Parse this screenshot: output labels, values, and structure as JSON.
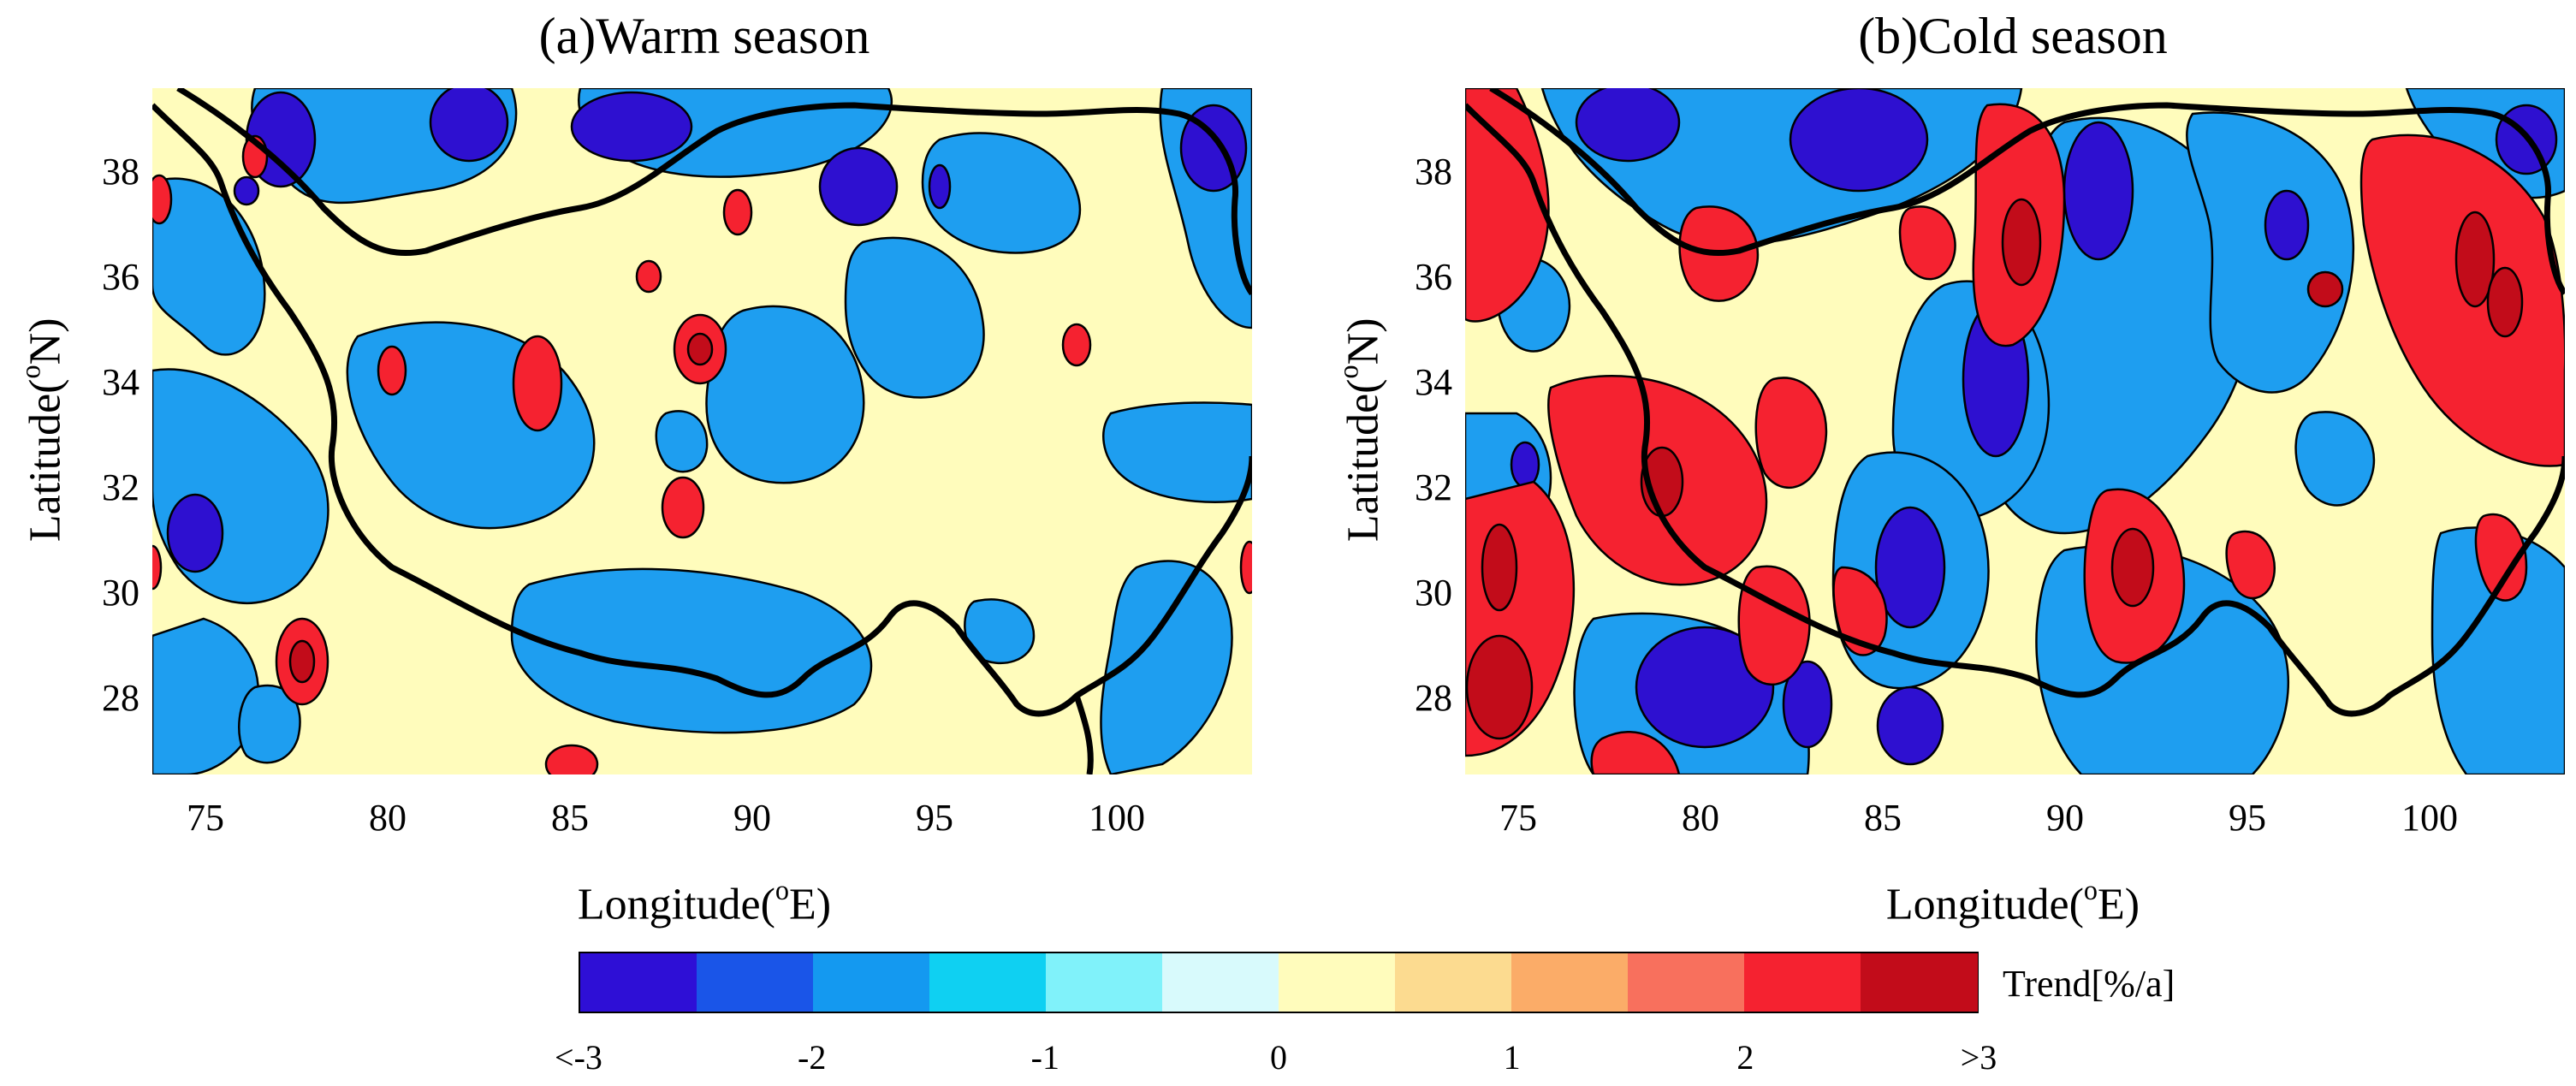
{
  "panels": [
    {
      "title": "(a)Warm season",
      "xlabel": "Longitude(",
      "xlabel_sup": "o",
      "xlabel_end": "E)",
      "ylabel": "Latitude(",
      "ylabel_sup": "o",
      "ylabel_end": "N)",
      "xticks": [
        "75",
        "80",
        "85",
        "90",
        "95",
        "100"
      ],
      "yticks": [
        "38",
        "36",
        "34",
        "32",
        "30",
        "28"
      ],
      "extent": {
        "lon": [
          73.5,
          103.5
        ],
        "lat": [
          26.5,
          39.5
        ]
      }
    },
    {
      "title": "(b)Cold season",
      "xlabel": "Longitude(",
      "xlabel_sup": "o",
      "xlabel_end": "E)",
      "ylabel": "Latitude(",
      "ylabel_sup": "o",
      "ylabel_end": "N)",
      "xticks": [
        "75",
        "80",
        "85",
        "90",
        "95",
        "100"
      ],
      "yticks": [
        "38",
        "36",
        "34",
        "32",
        "30",
        "28"
      ],
      "extent": {
        "lon": [
          73.5,
          103.5
        ],
        "lat": [
          26.5,
          39.5
        ]
      }
    }
  ],
  "colorbar": {
    "title": "Trend[%/a]",
    "colors": [
      "#2e0fd6",
      "#1a55e8",
      "#1499f0",
      "#0fd0f2",
      "#80f2fa",
      "#d8fafc",
      "#fffcbc",
      "#fcdb90",
      "#fbac68",
      "#f8705d",
      "#f52230",
      "#c20c1a"
    ],
    "labels": [
      "<-3",
      "-2",
      "-1",
      "0",
      "1",
      "2",
      ">3"
    ]
  },
  "colors": {
    "blue_dark": "#2e10d0",
    "blue_mid": "#1e9ef0",
    "yellow": "#fffcbc",
    "red_mid": "#f52230",
    "red_dark": "#c20c1a",
    "border": "#000000"
  }
}
